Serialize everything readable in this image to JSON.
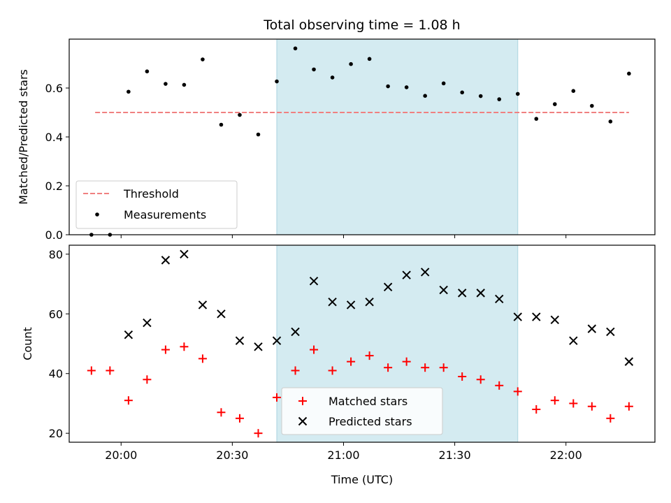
{
  "chart_data": [
    {
      "type": "scatter",
      "title": "Total observing time = 1.08 h",
      "ylabel": "Matched/Predicted stars",
      "xlabel": "",
      "xlim": [
        "19:46",
        "22:24"
      ],
      "ylim": [
        0,
        0.8
      ],
      "yticks": [
        "0.0",
        "0.2",
        "0.4",
        "0.6"
      ],
      "xticks": [
        "20:00",
        "20:30",
        "21:00",
        "21:30",
        "22:00"
      ],
      "shaded_span": [
        "20:42",
        "21:47"
      ],
      "shade_color": "#d4ebf1",
      "legend": {
        "placement": "lower-left",
        "entries": [
          "Threshold",
          "Measurements"
        ]
      },
      "series": [
        {
          "name": "Threshold",
          "style": "dashed-line",
          "color": "#f08080",
          "x": [
            "19:53",
            "22:17"
          ],
          "y": [
            0.5,
            0.5
          ]
        },
        {
          "name": "Measurements",
          "style": "dot",
          "color": "#000000",
          "x": [
            "19:52",
            "19:57",
            "20:02",
            "20:07",
            "20:12",
            "20:17",
            "20:22",
            "20:27",
            "20:32",
            "20:37",
            "20:42",
            "20:47",
            "20:52",
            "20:57",
            "21:02",
            "21:07",
            "21:12",
            "21:17",
            "21:22",
            "21:27",
            "21:32",
            "21:37",
            "21:42",
            "21:47",
            "21:52",
            "21:57",
            "22:02",
            "22:07",
            "22:12",
            "22:17"
          ],
          "y": [
            0.0,
            0.0,
            0.585,
            0.668,
            0.617,
            0.613,
            0.717,
            0.45,
            0.49,
            0.41,
            0.627,
            0.762,
            0.676,
            0.643,
            0.698,
            0.719,
            0.607,
            0.603,
            0.568,
            0.619,
            0.582,
            0.567,
            0.554,
            0.576,
            0.474,
            0.534,
            0.588,
            0.527,
            0.463,
            0.659
          ]
        }
      ]
    },
    {
      "type": "scatter",
      "title": "",
      "ylabel": "Count",
      "xlabel": "Time (UTC)",
      "xlim": [
        "19:46",
        "22:24"
      ],
      "ylim": [
        17,
        83
      ],
      "yticks": [
        "20",
        "40",
        "60",
        "80"
      ],
      "xticks": [
        "20:00",
        "20:30",
        "21:00",
        "21:30",
        "22:00"
      ],
      "shaded_span": [
        "20:42",
        "21:47"
      ],
      "shade_color": "#d4ebf1",
      "legend": {
        "placement": "lower-center",
        "entries": [
          "Matched stars",
          "Predicted stars"
        ]
      },
      "series": [
        {
          "name": "Matched stars",
          "style": "plus",
          "color": "#ff0000",
          "x": [
            "19:52",
            "19:57",
            "20:02",
            "20:07",
            "20:12",
            "20:17",
            "20:22",
            "20:27",
            "20:32",
            "20:37",
            "20:42",
            "20:47",
            "20:52",
            "20:57",
            "21:02",
            "21:07",
            "21:12",
            "21:17",
            "21:22",
            "21:27",
            "21:32",
            "21:37",
            "21:42",
            "21:47",
            "21:52",
            "21:57",
            "22:02",
            "22:07",
            "22:12",
            "22:17"
          ],
          "y": [
            41,
            41,
            31,
            38,
            48,
            49,
            45,
            27,
            25,
            20,
            32,
            41,
            48,
            41,
            44,
            46,
            42,
            44,
            42,
            42,
            39,
            38,
            36,
            34,
            28,
            31,
            30,
            29,
            25,
            29
          ]
        },
        {
          "name": "Predicted stars",
          "style": "x",
          "color": "#000000",
          "x": [
            "20:02",
            "20:07",
            "20:12",
            "20:17",
            "20:22",
            "20:27",
            "20:32",
            "20:37",
            "20:42",
            "20:47",
            "20:52",
            "20:57",
            "21:02",
            "21:07",
            "21:12",
            "21:17",
            "21:22",
            "21:27",
            "21:32",
            "21:37",
            "21:42",
            "21:47",
            "21:52",
            "21:57",
            "22:02",
            "22:07",
            "22:12",
            "22:17"
          ],
          "y": [
            53,
            57,
            78,
            80,
            63,
            60,
            51,
            49,
            51,
            54,
            71,
            64,
            63,
            64,
            69,
            73,
            74,
            68,
            67,
            67,
            65,
            59,
            59,
            58,
            51,
            55,
            54,
            44
          ]
        }
      ]
    }
  ]
}
